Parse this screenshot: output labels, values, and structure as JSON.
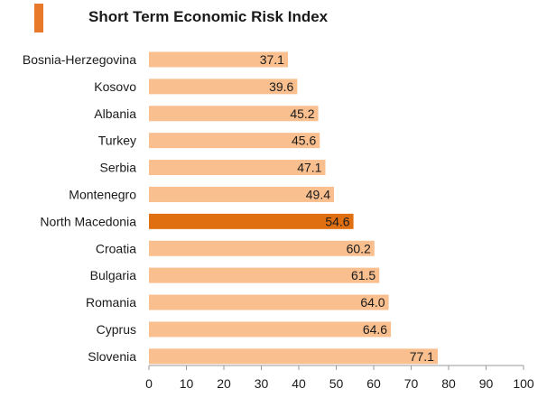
{
  "colors": {
    "accent": "#e8782a",
    "bar": "#f9bf8f",
    "highlight": "#e06f12",
    "axis": "#9a9a9a",
    "text": "#1a1a1a"
  },
  "chart_data": {
    "type": "bar",
    "orientation": "horizontal",
    "title": "Short Term Economic Risk Index",
    "categories": [
      "Bosnia-Herzegovina",
      "Kosovo",
      "Albania",
      "Turkey",
      "Serbia",
      "Montenegro",
      "North Macedonia",
      "Croatia",
      "Bulgaria",
      "Romania",
      "Cyprus",
      "Slovenia"
    ],
    "values": [
      37.1,
      39.6,
      45.2,
      45.6,
      47.1,
      49.4,
      54.6,
      60.2,
      61.5,
      64.0,
      64.6,
      77.1
    ],
    "value_labels": [
      "37.1",
      "39.6",
      "45.2",
      "45.6",
      "47.1",
      "49.4",
      "54.6",
      "60.2",
      "61.5",
      "64.0",
      "64.6",
      "77.1"
    ],
    "highlight": "North Macedonia",
    "xlim": [
      0,
      100
    ],
    "xticks": [
      "0",
      "10",
      "20",
      "30",
      "40",
      "50",
      "60",
      "70",
      "80",
      "90",
      "100"
    ],
    "grid": false,
    "legend": "none"
  }
}
